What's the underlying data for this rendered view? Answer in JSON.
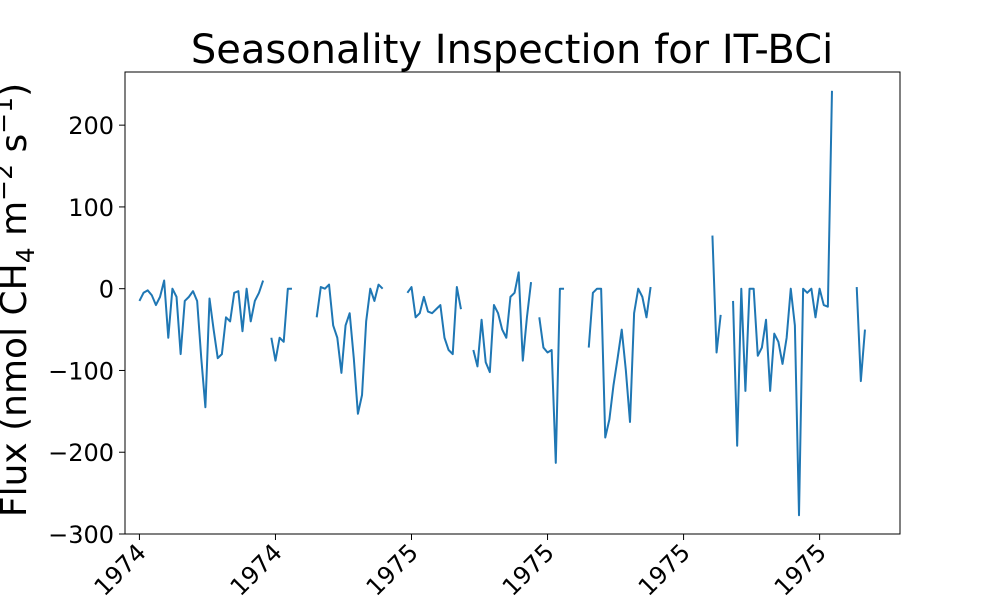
{
  "chart_data": {
    "type": "line",
    "title": "Seasonality Inspection for IT-BCi",
    "ylabel": "Flux (nmol CH4 m-2 s-1)",
    "ylabel_parts": {
      "base": "Flux (nmol CH",
      "sub": "4",
      "mid": " m",
      "sup1": "−2",
      "mid2": " s",
      "sup2": "−1",
      "end": ")"
    },
    "xlabel": "",
    "ylim": [
      -300,
      265
    ],
    "xlim": [
      -3.5,
      184.5
    ],
    "y_ticks": [
      -300,
      -200,
      -100,
      0,
      100,
      200
    ],
    "y_tick_labels": [
      "−300",
      "−200",
      "−100",
      "0",
      "100",
      "200"
    ],
    "x_ticks": [
      0,
      33,
      66,
      99,
      132,
      165
    ],
    "x_tick_labels": [
      "1974",
      "1974",
      "1975",
      "1975",
      "1975",
      "1975"
    ],
    "grid": false,
    "legend": "none",
    "series": [
      {
        "color": "#1f77b4",
        "values": [
          -15,
          -5,
          -2,
          -8,
          -20,
          -10,
          10,
          -60,
          0,
          -10,
          -80,
          -15,
          -10,
          -3,
          -15,
          -85,
          -145,
          -12,
          -50,
          -85,
          -80,
          -35,
          -40,
          -5,
          -3,
          -52,
          0,
          -40,
          -15,
          -5,
          10,
          null,
          -60,
          -88,
          -60,
          -65,
          0,
          0,
          null,
          null,
          null,
          null,
          null,
          -35,
          2,
          0,
          5,
          -45,
          -60,
          -103,
          -45,
          -30,
          -85,
          -153,
          -130,
          -40,
          0,
          -15,
          5,
          0,
          null,
          null,
          null,
          null,
          null,
          -5,
          2,
          -35,
          -30,
          -10,
          -28,
          -30,
          -25,
          -20,
          -60,
          -75,
          -80,
          2,
          -25,
          null,
          null,
          -75,
          -95,
          -38,
          -90,
          -102,
          -20,
          -30,
          -50,
          -60,
          -10,
          -5,
          20,
          -88,
          -35,
          8,
          null,
          -35,
          -72,
          -78,
          -75,
          -213,
          0,
          0,
          null,
          null,
          null,
          null,
          null,
          -72,
          -5,
          0,
          0,
          -182,
          -160,
          -118,
          -85,
          -50,
          -100,
          -163,
          -30,
          0,
          -10,
          -35,
          2,
          null,
          null,
          null,
          null,
          null,
          null,
          null,
          null,
          null,
          null,
          null,
          null,
          null,
          null,
          65,
          -78,
          -32,
          null,
          null,
          -15,
          -192,
          0,
          -125,
          0,
          0,
          -82,
          -72,
          -38,
          -125,
          -55,
          -65,
          -92,
          -60,
          0,
          -45,
          -277,
          0,
          -5,
          0,
          -35,
          0,
          -20,
          -22,
          242,
          null,
          null,
          null,
          null,
          null,
          2,
          -113,
          -50
        ]
      }
    ]
  }
}
